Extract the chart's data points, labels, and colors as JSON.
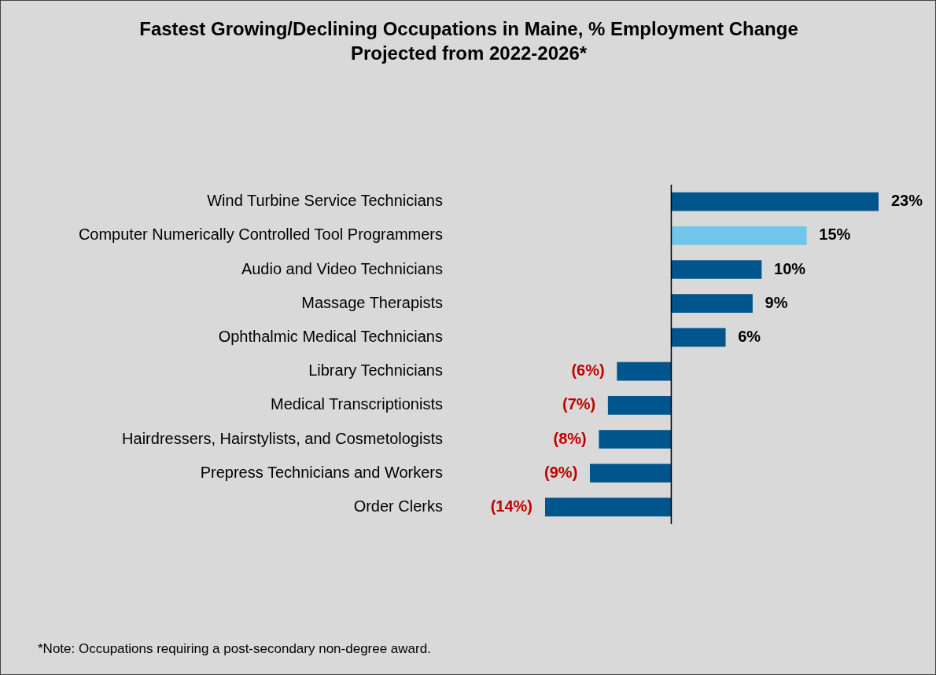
{
  "chart_data": {
    "type": "bar",
    "orientation": "horizontal",
    "title": "Fastest Growing/Declining Occupations in Maine, % Employment Change Projected from 2022-2026*",
    "categories": [
      "Wind Turbine Service Technicians",
      "Computer Numerically Controlled Tool Programmers",
      "Audio and Video Technicians",
      "Massage Therapists",
      "Ophthalmic Medical Technicians",
      "Library Technicians",
      "Medical Transcriptionists",
      "Hairdressers, Hairstylists, and Cosmetologists",
      "Prepress Technicians and Workers",
      "Order Clerks"
    ],
    "values": [
      23,
      15,
      10,
      9,
      6,
      -6,
      -7,
      -8,
      -9,
      -14
    ],
    "colors": [
      "#00558c",
      "#72c5ea",
      "#00558c",
      "#00558c",
      "#00558c",
      "#00558c",
      "#00558c",
      "#00558c",
      "#00558c",
      "#00558c"
    ],
    "value_labels": [
      "23%",
      "15%",
      "10%",
      "9%",
      "6%",
      "(6%)",
      "(7%)",
      "(8%)",
      "(9%)",
      "(14%)"
    ],
    "annotations": [
      "*Note: Occupations requiring a post-secondary non-degree award."
    ],
    "legend": false
  }
}
